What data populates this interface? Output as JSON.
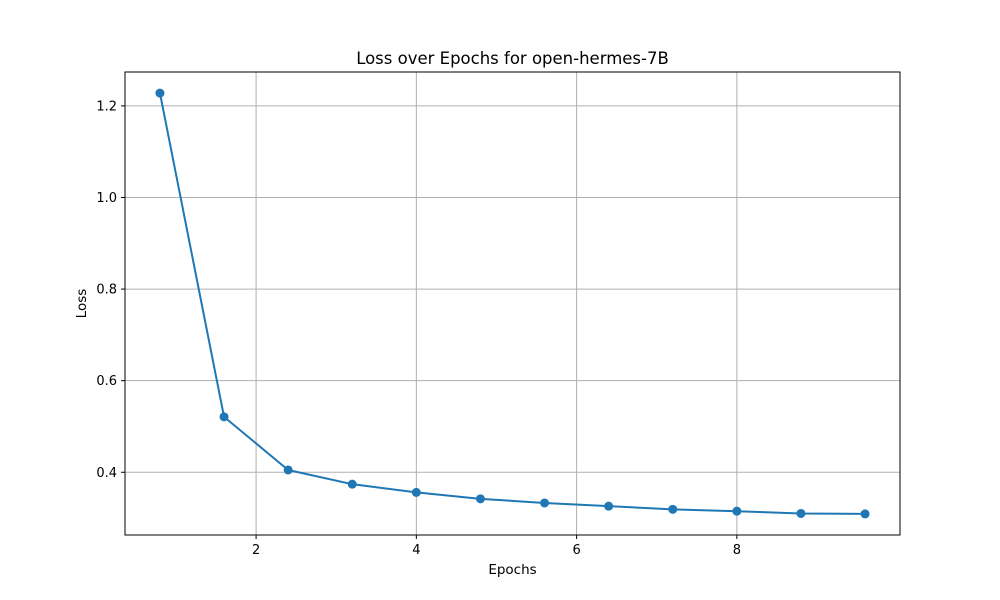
{
  "chart_data": {
    "type": "line",
    "title": "Loss over Epochs for open-hermes-7B",
    "xlabel": "Epochs",
    "ylabel": "Loss",
    "x": [
      0.8,
      1.6,
      2.4,
      3.2,
      4.0,
      4.8,
      5.6,
      6.4,
      7.2,
      8.0,
      8.8,
      9.6
    ],
    "series": [
      {
        "values": [
          1.228,
          0.521,
          0.405,
          0.374,
          0.356,
          0.342,
          0.333,
          0.326,
          0.319,
          0.315,
          0.31,
          0.309
        ],
        "color": "#1f77b4",
        "marker": "circle"
      }
    ],
    "xlim": [
      0.364,
      10.036
    ],
    "ylim": [
      0.263,
      1.274
    ],
    "xticks": [
      2,
      4,
      6,
      8
    ],
    "yticks": [
      0.4,
      0.6,
      0.8,
      1.0,
      1.2
    ],
    "xtick_labels": [
      "2",
      "4",
      "6",
      "8"
    ],
    "ytick_labels": [
      "0.4",
      "0.6",
      "0.8",
      "1.0",
      "1.2"
    ],
    "grid": true
  }
}
